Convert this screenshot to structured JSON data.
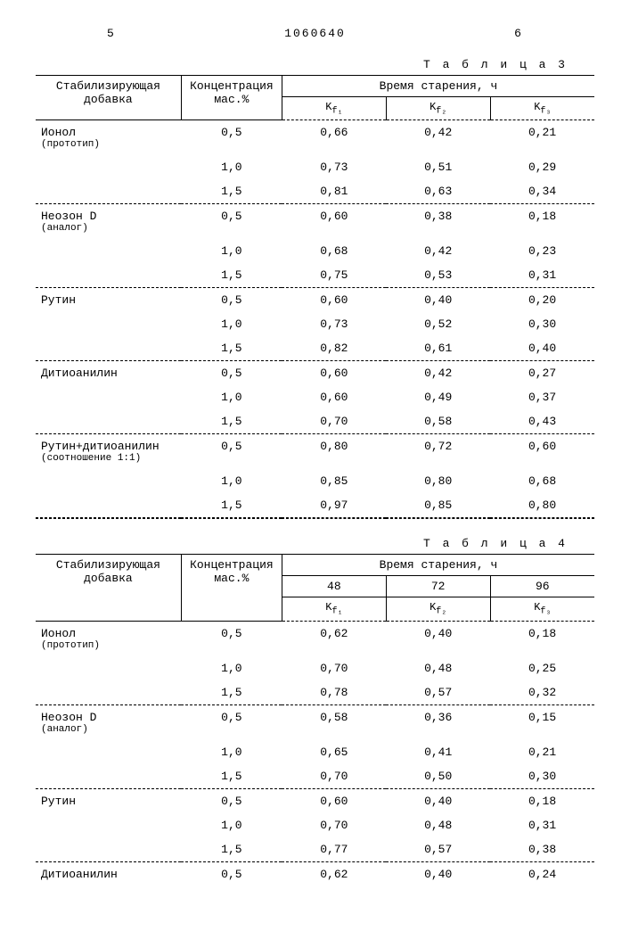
{
  "header": {
    "left_num": "5",
    "doc_num": "1060640",
    "right_num": "6"
  },
  "table3": {
    "caption": "Т а б л и ц а  3",
    "head_additive": "Стабилизирующая добавка",
    "head_conc": "Концентрация\nмас.%",
    "head_time": "Время старения, ч",
    "sub_heads": [
      "K",
      "K",
      "K"
    ],
    "sub_subs": [
      "f₁",
      "f₂",
      "f₃"
    ],
    "groups": [
      {
        "name": "Ионол",
        "note": "(прототип)",
        "rows": [
          [
            "0,5",
            "0,66",
            "0,42",
            "0,21"
          ],
          [
            "1,0",
            "0,73",
            "0,51",
            "0,29"
          ],
          [
            "1,5",
            "0,81",
            "0,63",
            "0,34"
          ]
        ]
      },
      {
        "name": "Неозон D",
        "note": "(аналог)",
        "rows": [
          [
            "0,5",
            "0,60",
            "0,38",
            "0,18"
          ],
          [
            "1,0",
            "0,68",
            "0,42",
            "0,23"
          ],
          [
            "1,5",
            "0,75",
            "0,53",
            "0,31"
          ]
        ]
      },
      {
        "name": "Рутин",
        "note": "",
        "rows": [
          [
            "0,5",
            "0,60",
            "0,40",
            "0,20"
          ],
          [
            "1,0",
            "0,73",
            "0,52",
            "0,30"
          ],
          [
            "1,5",
            "0,82",
            "0,61",
            "0,40"
          ]
        ]
      },
      {
        "name": "Дитиоанилин",
        "note": "",
        "rows": [
          [
            "0,5",
            "0,60",
            "0,42",
            "0,27"
          ],
          [
            "1,0",
            "0,60",
            "0,49",
            "0,37"
          ],
          [
            "1,5",
            "0,70",
            "0,58",
            "0,43"
          ]
        ]
      },
      {
        "name": "Рутин+дитиоанилин",
        "note": "(соотношение 1:1)",
        "rows": [
          [
            "0,5",
            "0,80",
            "0,72",
            "0,60"
          ],
          [
            "1,0",
            "0,85",
            "0,80",
            "0,68"
          ],
          [
            "1,5",
            "0,97",
            "0,85",
            "0,80"
          ]
        ]
      }
    ]
  },
  "table4": {
    "caption": "Т а б л и ц а  4",
    "head_additive": "Стабилизирующая добавка",
    "head_conc": "Концентрация\nмас.%",
    "head_time": "Время старения, ч",
    "time_cols": [
      "48",
      "72",
      "96"
    ],
    "sub_heads": [
      "K",
      "K",
      "K"
    ],
    "sub_subs": [
      "f₁",
      "f₂",
      "f₃"
    ],
    "groups": [
      {
        "name": "Ионол",
        "note": "(прототип)",
        "rows": [
          [
            "0,5",
            "0,62",
            "0,40",
            "0,18"
          ],
          [
            "1,0",
            "0,70",
            "0,48",
            "0,25"
          ],
          [
            "1,5",
            "0,78",
            "0,57",
            "0,32"
          ]
        ]
      },
      {
        "name": "Неозон D",
        "note": "(аналог)",
        "rows": [
          [
            "0,5",
            "0,58",
            "0,36",
            "0,15"
          ],
          [
            "1,0",
            "0,65",
            "0,41",
            "0,21"
          ],
          [
            "1,5",
            "0,70",
            "0,50",
            "0,30"
          ]
        ]
      },
      {
        "name": "Рутин",
        "note": "",
        "rows": [
          [
            "0,5",
            "0,60",
            "0,40",
            "0,18"
          ],
          [
            "1,0",
            "0,70",
            "0,48",
            "0,31"
          ],
          [
            "1,5",
            "0,77",
            "0,57",
            "0,38"
          ]
        ]
      },
      {
        "name": "Дитиоанилин",
        "note": "",
        "rows": [
          [
            "0,5",
            "0,62",
            "0,40",
            "0,24"
          ]
        ]
      }
    ]
  }
}
